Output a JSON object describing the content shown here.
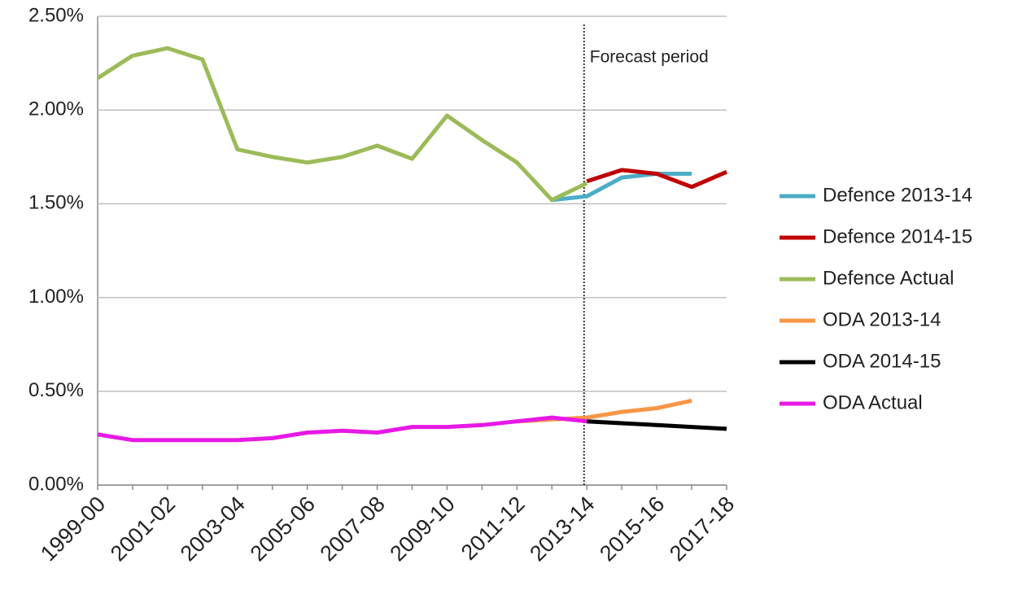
{
  "chart_data": {
    "type": "line",
    "annotation": "Forecast period",
    "categories": [
      "1999-00",
      null,
      "2001-02",
      null,
      "2003-04",
      null,
      "2005-06",
      null,
      "2007-08",
      null,
      "2009-10",
      null,
      "2011-12",
      null,
      "2013-14",
      null,
      "2015-16",
      null,
      "2017-18"
    ],
    "series": [
      {
        "name": "Defence 2013-14",
        "color": "#4bacc6",
        "values": [
          null,
          null,
          null,
          null,
          null,
          null,
          null,
          null,
          null,
          null,
          null,
          null,
          null,
          1.52,
          1.54,
          1.64,
          1.66,
          1.66,
          null
        ]
      },
      {
        "name": "Defence 2014-15",
        "color": "#c00000",
        "values": [
          null,
          null,
          null,
          null,
          null,
          null,
          null,
          null,
          null,
          null,
          null,
          null,
          null,
          null,
          1.62,
          1.68,
          1.66,
          1.59,
          1.67
        ]
      },
      {
        "name": "Defence Actual",
        "color": "#9bbb59",
        "values": [
          2.17,
          2.29,
          2.33,
          2.27,
          1.79,
          1.75,
          1.72,
          1.75,
          1.81,
          1.74,
          1.97,
          1.84,
          1.72,
          1.52,
          1.61,
          null,
          null,
          null,
          null
        ]
      },
      {
        "name": "ODA 2013-14",
        "color": "#f79646",
        "values": [
          null,
          null,
          null,
          null,
          null,
          null,
          null,
          null,
          null,
          null,
          null,
          null,
          0.34,
          0.35,
          0.36,
          0.39,
          0.41,
          0.45,
          null
        ]
      },
      {
        "name": "ODA 2014-15",
        "color": "#000000",
        "values": [
          null,
          null,
          null,
          null,
          null,
          null,
          null,
          null,
          null,
          null,
          null,
          null,
          null,
          null,
          0.34,
          0.33,
          0.32,
          0.31,
          0.3
        ]
      },
      {
        "name": "ODA Actual",
        "color": "#e619e6",
        "values": [
          0.27,
          0.24,
          0.24,
          0.24,
          0.24,
          0.25,
          0.28,
          0.29,
          0.28,
          0.31,
          0.31,
          0.32,
          0.34,
          0.36,
          0.34,
          null,
          null,
          null,
          null
        ]
      }
    ],
    "ylim": [
      0,
      2.5
    ],
    "yticks": [
      {
        "value": 0,
        "label": "0.00%"
      },
      {
        "value": 0.5,
        "label": "0.50%"
      },
      {
        "value": 1,
        "label": "1.00%"
      },
      {
        "value": 1.5,
        "label": "1.50%"
      },
      {
        "value": 2,
        "label": "2.00%"
      },
      {
        "value": 2.5,
        "label": "2.50%"
      }
    ],
    "grid": true
  }
}
